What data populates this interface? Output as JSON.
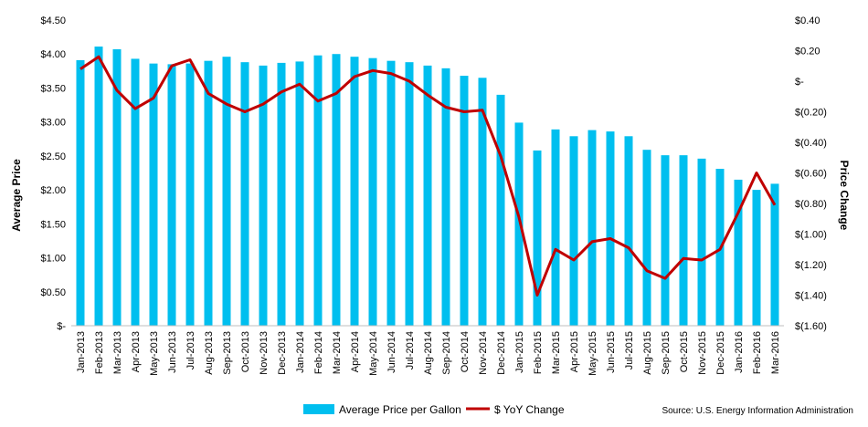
{
  "chart_data": {
    "type": "bar",
    "title": "",
    "categories": [
      "Jan-2013",
      "Feb-2013",
      "Mar-2013",
      "Apr-2013",
      "May-2013",
      "Jun-2013",
      "Jul-2013",
      "Aug-2013",
      "Sep-2013",
      "Oct-2013",
      "Nov-2013",
      "Dec-2013",
      "Jan-2014",
      "Feb-2014",
      "Mar-2014",
      "Apr-2014",
      "May-2014",
      "Jun-2014",
      "Jul-2014",
      "Aug-2014",
      "Sep-2014",
      "Oct-2014",
      "Nov-2014",
      "Dec-2014",
      "Jan-2015",
      "Feb-2015",
      "Mar-2015",
      "Apr-2015",
      "May-2015",
      "Jun-2015",
      "Jul-2015",
      "Aug-2015",
      "Sep-2015",
      "Oct-2015",
      "Nov-2015",
      "Dec-2015",
      "Jan-2016",
      "Feb-2016",
      "Mar-2016"
    ],
    "series": [
      {
        "name": "Average Price per Gallon",
        "type": "bar",
        "axis": "left",
        "color": "#00bfef",
        "values": [
          3.91,
          4.11,
          4.07,
          3.93,
          3.86,
          3.85,
          3.86,
          3.9,
          3.96,
          3.88,
          3.83,
          3.87,
          3.89,
          3.98,
          4.0,
          3.96,
          3.94,
          3.9,
          3.88,
          3.83,
          3.79,
          3.68,
          3.65,
          3.4,
          2.99,
          2.58,
          2.89,
          2.79,
          2.88,
          2.86,
          2.79,
          2.59,
          2.51,
          2.51,
          2.46,
          2.31,
          2.15,
          2.0,
          2.09
        ]
      },
      {
        "name": "$ YoY Change",
        "type": "line",
        "axis": "right",
        "color": "#c00000",
        "values": [
          0.08,
          0.16,
          -0.06,
          -0.18,
          -0.11,
          0.1,
          0.14,
          -0.08,
          -0.15,
          -0.2,
          -0.15,
          -0.07,
          -0.02,
          -0.13,
          -0.08,
          0.03,
          0.07,
          0.05,
          0.0,
          -0.09,
          -0.17,
          -0.2,
          -0.19,
          -0.49,
          -0.89,
          -1.4,
          -1.1,
          -1.17,
          -1.05,
          -1.03,
          -1.09,
          -1.24,
          -1.29,
          -1.16,
          -1.17,
          -1.1,
          -0.86,
          -0.6,
          -0.81
        ]
      }
    ],
    "left_axis": {
      "label": "Average Price",
      "ylim": [
        0,
        4.5
      ],
      "ticks": [
        {
          "value": 0,
          "label": "$-"
        },
        {
          "value": 0.5,
          "label": "$0.50"
        },
        {
          "value": 1.0,
          "label": "$1.00"
        },
        {
          "value": 1.5,
          "label": "$1.50"
        },
        {
          "value": 2.0,
          "label": "$2.00"
        },
        {
          "value": 2.5,
          "label": "$2.50"
        },
        {
          "value": 3.0,
          "label": "$3.00"
        },
        {
          "value": 3.5,
          "label": "$3.50"
        },
        {
          "value": 4.0,
          "label": "$4.00"
        },
        {
          "value": 4.5,
          "label": "$4.50"
        }
      ]
    },
    "right_axis": {
      "label": "Price Change",
      "ylim": [
        -1.6,
        0.4
      ],
      "ticks": [
        {
          "value": 0.4,
          "label": "$0.40"
        },
        {
          "value": 0.2,
          "label": "$0.20"
        },
        {
          "value": 0,
          "label": "$-"
        },
        {
          "value": -0.2,
          "label": "$(0.20)"
        },
        {
          "value": -0.4,
          "label": "$(0.40)"
        },
        {
          "value": -0.6,
          "label": "$(0.60)"
        },
        {
          "value": -0.8,
          "label": "$(0.80)"
        },
        {
          "value": -1.0,
          "label": "$(1.00)"
        },
        {
          "value": -1.2,
          "label": "$(1.20)"
        },
        {
          "value": -1.4,
          "label": "$(1.40)"
        },
        {
          "value": -1.6,
          "label": "$(1.60)"
        }
      ]
    },
    "grid": false,
    "legend": "bottom"
  },
  "source_note": "Source: U.S. Energy Information Administration"
}
